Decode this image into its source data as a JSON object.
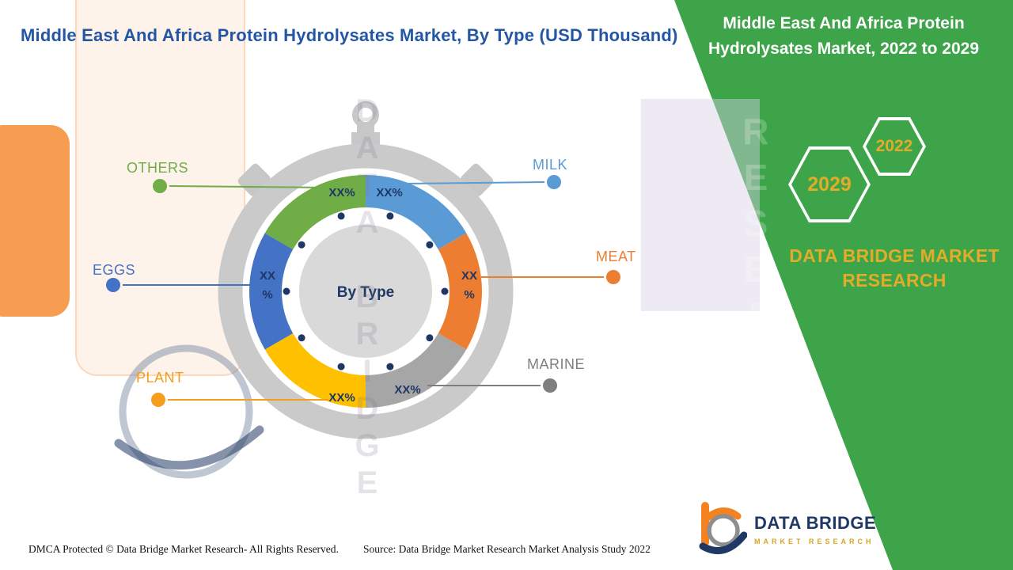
{
  "header": {
    "title": "Middle East And Africa Protein Hydrolysates Market, By Type (USD Thousand)",
    "banner_line1": "Middle East And Africa Protein",
    "banner_line2": "Hydrolysates Market, 2022 to 2029"
  },
  "badges": {
    "hexagon_left": "2029",
    "hexagon_right": "2022"
  },
  "brand": {
    "name_line1": "DATA BRIDGE MARKET",
    "name_line2": "RESEARCH"
  },
  "logo": {
    "title": "DATA BRIDGE",
    "subtitle": "MARKET RESEARCH"
  },
  "watermark": {
    "text_center": "DATA BRIDGE",
    "text_right": "RESEARCH"
  },
  "footer": {
    "dmca": "DMCA Protected © Data Bridge Market Research- All Rights Reserved.",
    "source": "Source: Data Bridge Market Research Market Analysis Study 2022"
  },
  "colors": {
    "green_banner": "#3DA44A",
    "gold": "#D9A521",
    "navy": "#1E3765",
    "title_blue": "#2456A4"
  },
  "chart_data": {
    "type": "pie",
    "title": "Middle East And Africa Protein Hydrolysates Market, By Type (USD Thousand)",
    "center_label": "By Type",
    "unit": "USD Thousand",
    "legend_position": "callout-labels",
    "segments": [
      {
        "label": "MILK",
        "value_label": "XX%",
        "value": 16.67,
        "color": "#5B9BD5",
        "accent": "#5B9BD5"
      },
      {
        "label": "MEAT",
        "value_label": "XX%",
        "value": 16.67,
        "color": "#ED7D31",
        "accent": "#ED7D31"
      },
      {
        "label": "MARINE",
        "value_label": "XX%",
        "value": 16.67,
        "color": "#A6A6A6",
        "accent": "#7F7F7F"
      },
      {
        "label": "PLANT",
        "value_label": "XX%",
        "value": 16.67,
        "color": "#FFC000",
        "accent": "#F59E1B"
      },
      {
        "label": "EGGS",
        "value_label": "XX%",
        "value": 16.67,
        "color": "#4472C4",
        "accent": "#4472C4"
      },
      {
        "label": "OTHERS",
        "value_label": "XX%",
        "value": 16.67,
        "color": "#70AD47",
        "accent": "#70AD47"
      }
    ]
  }
}
